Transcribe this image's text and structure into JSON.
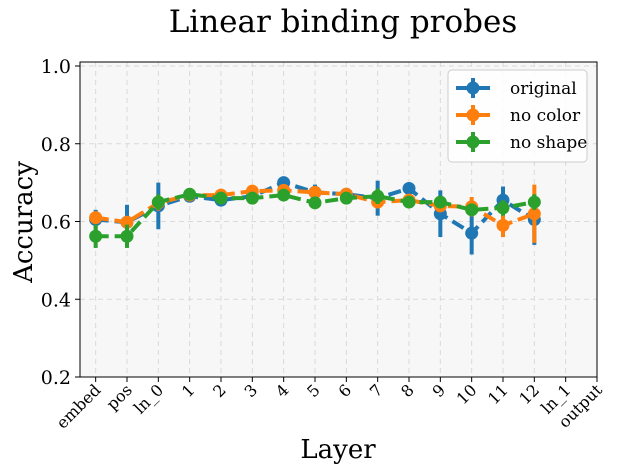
{
  "chart_data": {
    "type": "line",
    "title": "Linear binding probes",
    "xlabel": "Layer",
    "ylabel": "Accuracy",
    "categories": [
      "embed",
      "pos",
      "ln_0",
      "1",
      "2",
      "3",
      "4",
      "5",
      "6",
      "7",
      "8",
      "9",
      "10",
      "11",
      "12",
      "ln_1",
      "output"
    ],
    "ylim": [
      0.2,
      1.0
    ],
    "yticks": [
      0.2,
      0.4,
      0.6,
      0.8,
      1.0
    ],
    "grid": true,
    "legend_position": "top-right",
    "series": [
      {
        "name": "original",
        "color": "#1f77b4",
        "values": [
          0.605,
          0.598,
          0.64,
          0.665,
          0.655,
          0.665,
          0.7,
          0.675,
          0.67,
          0.66,
          0.685,
          0.62,
          0.57,
          0.655,
          0.605,
          null,
          null
        ],
        "errors": [
          0.025,
          0.045,
          0.06,
          0.015,
          0.015,
          0.015,
          0.015,
          0.02,
          0.015,
          0.045,
          0.015,
          0.06,
          0.055,
          0.035,
          0.065,
          null,
          null
        ]
      },
      {
        "name": "no color",
        "color": "#ff7f0e",
        "values": [
          0.61,
          0.598,
          0.648,
          0.668,
          0.668,
          0.678,
          0.68,
          0.675,
          0.67,
          0.65,
          0.655,
          0.64,
          0.638,
          0.59,
          0.62,
          null,
          null
        ],
        "errors": [
          0.015,
          0.015,
          0.02,
          0.01,
          0.012,
          0.012,
          0.015,
          0.015,
          0.012,
          0.015,
          0.012,
          0.015,
          0.025,
          0.03,
          0.075,
          null,
          null
        ]
      },
      {
        "name": "no shape",
        "color": "#2ca02c",
        "values": [
          0.562,
          0.562,
          0.65,
          0.67,
          0.66,
          0.66,
          0.668,
          0.648,
          0.66,
          0.665,
          0.65,
          0.65,
          0.63,
          0.635,
          0.65,
          null,
          null
        ],
        "errors": [
          0.03,
          0.03,
          0.02,
          0.01,
          0.01,
          0.01,
          0.012,
          0.015,
          0.012,
          0.02,
          0.012,
          0.015,
          0.015,
          0.02,
          0.02,
          null,
          null
        ]
      }
    ]
  }
}
